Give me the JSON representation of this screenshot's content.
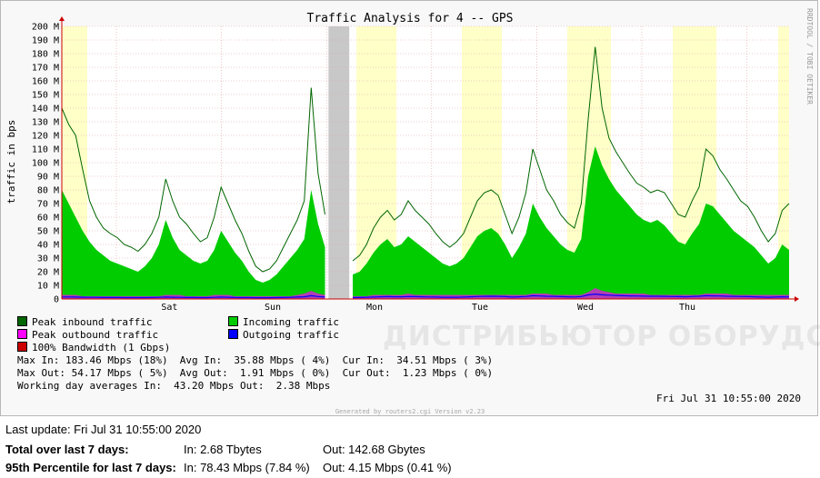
{
  "chart_data": {
    "type": "area",
    "title": "Traffic Analysis for 4 -- GPS",
    "ylabel": "traffic in bps",
    "ylim": [
      0,
      200
    ],
    "y_ticks": [
      "0",
      "10 M",
      "20 M",
      "30 M",
      "40 M",
      "50 M",
      "60 M",
      "70 M",
      "80 M",
      "90 M",
      "100 M",
      "110 M",
      "120 M",
      "130 M",
      "140 M",
      "150 M",
      "160 M",
      "170 M",
      "180 M",
      "190 M",
      "200 M"
    ],
    "x_labels": [
      "Sat",
      "Sun",
      "Mon",
      "Tue",
      "Wed",
      "Thu"
    ],
    "grid": true,
    "working_hours_highlight": true,
    "data_gap": true,
    "series": [
      {
        "name": "Peak inbound traffic",
        "color": "#006600",
        "values": [
          140,
          128,
          120,
          95,
          72,
          60,
          52,
          48,
          45,
          40,
          38,
          35,
          40,
          48,
          60,
          88,
          72,
          60,
          55,
          48,
          42,
          45,
          60,
          82,
          70,
          58,
          48,
          35,
          24,
          20,
          22,
          28,
          38,
          48,
          58,
          72,
          155,
          92,
          62,
          null,
          null,
          null,
          28,
          32,
          40,
          52,
          60,
          65,
          58,
          62,
          72,
          65,
          60,
          55,
          48,
          42,
          38,
          42,
          48,
          60,
          72,
          78,
          80,
          76,
          62,
          48,
          60,
          78,
          110,
          95,
          80,
          72,
          62,
          56,
          52,
          70,
          132,
          185,
          140,
          118,
          108,
          100,
          92,
          85,
          82,
          78,
          80,
          78,
          70,
          62,
          60,
          72,
          82,
          110,
          105,
          95,
          88,
          80,
          72,
          68,
          60,
          50,
          42,
          48,
          65,
          70
        ]
      },
      {
        "name": "Incoming traffic",
        "color": "#00cc00",
        "values": [
          80,
          70,
          60,
          50,
          42,
          36,
          32,
          28,
          26,
          24,
          22,
          20,
          24,
          30,
          40,
          58,
          45,
          36,
          32,
          28,
          26,
          28,
          36,
          50,
          42,
          34,
          28,
          20,
          14,
          12,
          14,
          18,
          24,
          30,
          36,
          44,
          80,
          55,
          38,
          null,
          null,
          null,
          18,
          20,
          26,
          34,
          40,
          44,
          38,
          40,
          46,
          42,
          38,
          34,
          30,
          26,
          24,
          26,
          30,
          38,
          46,
          50,
          52,
          48,
          40,
          30,
          38,
          48,
          70,
          60,
          52,
          46,
          40,
          36,
          34,
          44,
          90,
          112,
          98,
          88,
          80,
          74,
          68,
          62,
          58,
          56,
          58,
          54,
          48,
          42,
          40,
          48,
          55,
          70,
          68,
          62,
          56,
          50,
          46,
          42,
          38,
          32,
          26,
          30,
          40,
          36
        ]
      },
      {
        "name": "Peak outbound traffic",
        "color": "#ff00ff",
        "values": [
          3,
          3,
          3,
          2,
          2,
          2,
          2,
          2,
          2,
          2,
          2,
          2,
          2,
          2,
          2,
          3,
          3,
          3,
          2,
          2,
          2,
          2,
          3,
          3,
          3,
          2,
          2,
          2,
          2,
          2,
          2,
          2,
          2,
          2,
          3,
          4,
          6,
          4,
          3,
          null,
          null,
          null,
          2,
          2,
          2,
          3,
          3,
          3,
          3,
          3,
          4,
          3,
          3,
          3,
          3,
          3,
          3,
          3,
          3,
          3,
          3,
          3,
          3,
          3,
          3,
          3,
          3,
          3,
          4,
          4,
          4,
          3,
          3,
          3,
          3,
          3,
          5,
          8,
          6,
          5,
          4,
          4,
          4,
          4,
          4,
          3,
          3,
          3,
          3,
          3,
          3,
          3,
          3,
          4,
          4,
          4,
          4,
          3,
          3,
          3,
          3,
          3,
          3,
          3,
          3,
          3
        ]
      },
      {
        "name": "Outgoing traffic",
        "color": "#0000ff",
        "values": [
          1.5,
          1.5,
          1.4,
          1.3,
          1.2,
          1.2,
          1.1,
          1.1,
          1.1,
          1.0,
          1.0,
          1.0,
          1.0,
          1.1,
          1.2,
          1.4,
          1.3,
          1.2,
          1.1,
          1.1,
          1.0,
          1.0,
          1.2,
          1.4,
          1.3,
          1.1,
          1.0,
          1.0,
          0.9,
          0.9,
          0.9,
          1.0,
          1.1,
          1.2,
          1.4,
          1.6,
          2.4,
          1.8,
          1.4,
          null,
          null,
          null,
          1.0,
          1.1,
          1.2,
          1.4,
          1.6,
          1.7,
          1.6,
          1.6,
          1.8,
          1.7,
          1.6,
          1.5,
          1.4,
          1.3,
          1.3,
          1.3,
          1.4,
          1.6,
          1.8,
          1.9,
          2.0,
          1.9,
          1.7,
          1.4,
          1.6,
          1.8,
          2.4,
          2.2,
          2.0,
          1.9,
          1.7,
          1.6,
          1.5,
          1.8,
          3.0,
          3.6,
          3.1,
          2.8,
          2.6,
          2.4,
          2.3,
          2.2,
          2.1,
          2.0,
          2.0,
          1.9,
          1.8,
          1.7,
          1.6,
          1.8,
          2.0,
          2.4,
          2.3,
          2.2,
          2.0,
          1.9,
          1.8,
          1.7,
          1.6,
          1.4,
          1.3,
          1.4,
          1.6,
          1.5
        ]
      },
      {
        "name": "100% Bandwidth (1 Gbps)",
        "color": "#cc0000",
        "values": []
      }
    ]
  },
  "colors": {
    "highlight": "#ffffc8",
    "gap": "#c8c8c8",
    "axis": "#cc0000",
    "grid": "#e0a0a0"
  },
  "side_text": "RRDTOOL / TOBI OETIKER",
  "generated": "Generated by routers2.cgi Version v2.23",
  "legend": {
    "peak_in": "Peak inbound traffic",
    "incoming": "Incoming traffic",
    "peak_out": "Peak outbound traffic",
    "outgoing": "Outgoing traffic",
    "bandwidth": "100% Bandwidth (1 Gbps)"
  },
  "stats": {
    "line1": "Max In: 183.46 Mbps (18%)  Avg In:  35.88 Mbps ( 4%)  Cur In:  34.51 Mbps ( 3%)",
    "line2": "Max Out: 54.17 Mbps ( 5%)  Avg Out:  1.91 Mbps ( 0%)  Cur Out:  1.23 Mbps ( 0%)",
    "line3": "Working day averages In:  43.20 Mbps Out:  2.38 Mbps",
    "timestamp": "Fri Jul 31 10:55:00 2020"
  },
  "watermark": "ДИСТРИБЬЮТОР ОБОРУДОВАНИЯ СВЯЗИ",
  "summary": {
    "last_update": "Last update: Fri Jul 31 10:55:00 2020",
    "total_label": "Total over last 7 days:",
    "total_in": "In:  2.68 Tbytes",
    "total_out": "Out:  142.68 Gbytes",
    "p95_label": "95th Percentile for last 7 days:",
    "p95_in": "In:  78.43 Mbps (7.84 %)",
    "p95_out": "Out:       4.15 Mbps (0.41 %)"
  }
}
